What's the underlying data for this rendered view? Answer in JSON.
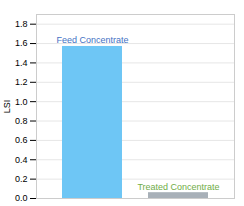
{
  "chart_data": {
    "type": "bar",
    "categories": [
      "Feed Concentrate",
      "Treated Concentrate"
    ],
    "values": [
      1.57,
      0.06
    ],
    "colors": [
      "#6ec6f5",
      "#a8b0b8"
    ],
    "ylabel": "LSI",
    "ylim": [
      0,
      1.9
    ],
    "yticks": [
      {
        "value": 0,
        "label": "0.0"
      },
      0.2,
      0.4,
      0.6,
      0.8,
      {
        "value": 1,
        "label": "1.0"
      },
      1.2,
      1.4,
      1.6,
      1.8
    ],
    "grid": true,
    "tick_labels": "y",
    "annotations": [
      {
        "text": "Feed Concentrate",
        "color": "#4472c4"
      },
      {
        "text": "Treated Concentrate",
        "color": "#70ad47"
      }
    ]
  }
}
